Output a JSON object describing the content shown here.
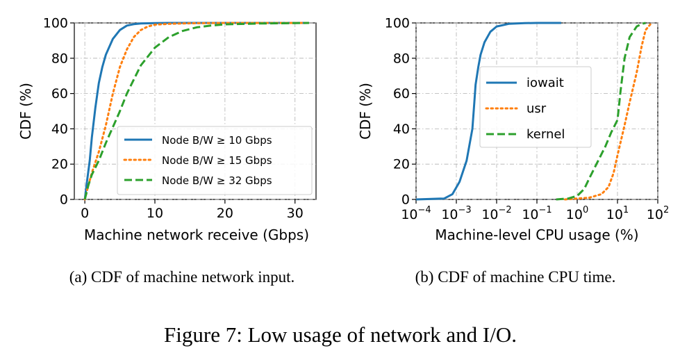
{
  "figure_caption": "Figure 7: Low usage of network and I/O.",
  "colors": {
    "blue": "#1f77b4",
    "orange": "#ff7f0e",
    "green": "#2ca02c"
  },
  "chart_data": [
    {
      "type": "line",
      "caption": "(a) CDF of machine network input.",
      "xlabel": "Machine network receive (Gbps)",
      "ylabel": "CDF (%)",
      "xlim": [
        -1.5,
        33
      ],
      "ylim": [
        0,
        100
      ],
      "xticks": [
        0,
        10,
        20,
        30
      ],
      "yticks": [
        0,
        20,
        40,
        60,
        80,
        100
      ],
      "xscale": "linear",
      "grid": true,
      "legend": "lower-right",
      "series": [
        {
          "name": "Node B/W ≥ 10 Gbps",
          "style": "solid",
          "color": "#1f77b4",
          "x": [
            0,
            0.3,
            0.7,
            1.0,
            1.5,
            2.0,
            2.5,
            3.0,
            4.0,
            5.0,
            6.0,
            7.0,
            8.0,
            10.0,
            12.0,
            15.0,
            20.0,
            32.0
          ],
          "y": [
            0,
            10,
            22,
            35,
            52,
            66,
            75,
            82,
            91,
            96,
            98.5,
            99.3,
            99.7,
            99.9,
            100,
            100,
            100,
            100
          ]
        },
        {
          "name": "Node B/W ≥ 15 Gbps",
          "style": "dotted",
          "color": "#ff7f0e",
          "x": [
            0,
            0.5,
            1.0,
            2.0,
            3.0,
            4.0,
            5.0,
            6.0,
            7.0,
            8.0,
            9.0,
            10.0,
            12.0,
            15.0,
            20.0,
            25.0,
            32.0
          ],
          "y": [
            0,
            8,
            15,
            27,
            42,
            60,
            75,
            85,
            92,
            96,
            98,
            99,
            99.5,
            99.8,
            100,
            100,
            100
          ]
        },
        {
          "name": "Node B/W ≥ 32 Gbps",
          "style": "dashed",
          "color": "#2ca02c",
          "x": [
            0,
            0.5,
            1.0,
            2.0,
            3.0,
            4.0,
            5.0,
            6.0,
            7.0,
            8.0,
            10.0,
            12.0,
            14.0,
            16.0,
            18.0,
            20.0,
            25.0,
            32.0
          ],
          "y": [
            0,
            8,
            14,
            22,
            32,
            41,
            50,
            60,
            68,
            76,
            86,
            92,
            95.5,
            97.5,
            98.5,
            99.2,
            99.7,
            100
          ]
        }
      ]
    },
    {
      "type": "line",
      "caption": "(b) CDF of machine CPU time.",
      "xlabel": "Machine-level CPU usage (%)",
      "ylabel": "CDF (%)",
      "xlim": [
        0.0001,
        100
      ],
      "ylim": [
        0,
        100
      ],
      "xscale": "log",
      "xticks": [
        0.0001,
        0.001,
        0.01,
        0.1,
        1,
        10,
        100
      ],
      "xtick_labels": [
        {
          "base": "10",
          "exp": "−4"
        },
        {
          "base": "10",
          "exp": "−3"
        },
        {
          "base": "10",
          "exp": "−2"
        },
        {
          "base": "10",
          "exp": "−1"
        },
        {
          "base": "10",
          "exp": "0"
        },
        {
          "base": "10",
          "exp": "1"
        },
        {
          "base": "10",
          "exp": "2"
        }
      ],
      "yticks": [
        0,
        20,
        40,
        60,
        80,
        100
      ],
      "grid": true,
      "legend": "center",
      "series": [
        {
          "name": "iowait",
          "style": "solid",
          "color": "#1f77b4",
          "x": [
            0.0001,
            0.0005,
            0.0008,
            0.0012,
            0.0018,
            0.0025,
            0.0028,
            0.003,
            0.0035,
            0.004,
            0.005,
            0.007,
            0.01,
            0.02,
            0.05,
            0.1,
            0.2,
            0.4
          ],
          "y": [
            0,
            0.5,
            3,
            10,
            22,
            40,
            55,
            65,
            75,
            82,
            89,
            95,
            98,
            99.5,
            99.9,
            100,
            100,
            100
          ]
        },
        {
          "name": "usr",
          "style": "dotted",
          "color": "#ff7f0e",
          "x": [
            0.5,
            1,
            2,
            4,
            6,
            8,
            10,
            15,
            20,
            30,
            40,
            50,
            70
          ],
          "y": [
            0,
            0.5,
            1,
            3,
            7,
            15,
            25,
            42,
            55,
            72,
            87,
            96,
            100
          ]
        },
        {
          "name": "kernel",
          "style": "dashed",
          "color": "#2ca02c",
          "x": [
            0.3,
            0.6,
            1.0,
            1.5,
            2.0,
            3.0,
            5.0,
            7.0,
            10.0,
            12.0,
            15.0,
            20.0,
            30.0,
            40.0,
            50.0
          ],
          "y": [
            0,
            0.5,
            2,
            6,
            12,
            20,
            30,
            38,
            45,
            62,
            80,
            92,
            98,
            99.5,
            100
          ]
        }
      ]
    }
  ]
}
